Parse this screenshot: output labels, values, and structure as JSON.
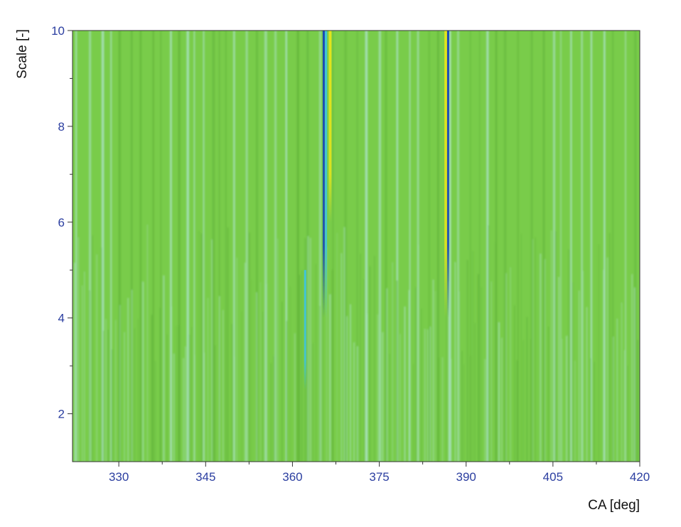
{
  "chart_data": {
    "type": "heatmap",
    "title": "",
    "xlabel": "CA [deg]",
    "ylabel": "Scale [-]",
    "xlim": [
      322,
      420
    ],
    "ylim": [
      1,
      10
    ],
    "x_ticks": [
      330,
      345,
      360,
      375,
      390,
      405,
      420
    ],
    "x_minor_ticks": [
      337.5,
      352.5,
      367.5,
      382.5,
      397.5,
      412.5
    ],
    "y_ticks": [
      2,
      4,
      6,
      8,
      10
    ],
    "y_minor_ticks": [
      3,
      5,
      7,
      9
    ],
    "grid": false,
    "legend": "none",
    "colors": {
      "background": "#79cc4a",
      "light_stripe": "#a9e2c4",
      "dark_stripe": "#5fb238",
      "cyan": "#3fc4d8",
      "blue": "#1a49b8",
      "yellow": "#e3e41c",
      "tick_text": "#2b3ea0"
    },
    "features": [
      {
        "label": "",
        "x": 365.6,
        "y_range": [
          4.0,
          10
        ],
        "colors": [
          "blue",
          "cyan"
        ]
      },
      {
        "label": "",
        "x": 366.5,
        "y_range": [
          6.0,
          10
        ],
        "colors": [
          "yellow"
        ]
      },
      {
        "label": "",
        "x": 386.7,
        "y_range": [
          4.0,
          10
        ],
        "colors": [
          "yellow",
          "blue"
        ]
      },
      {
        "label": "",
        "x": 362.2,
        "y_range": [
          2.5,
          5.0
        ],
        "colors": [
          "cyan"
        ]
      }
    ]
  }
}
